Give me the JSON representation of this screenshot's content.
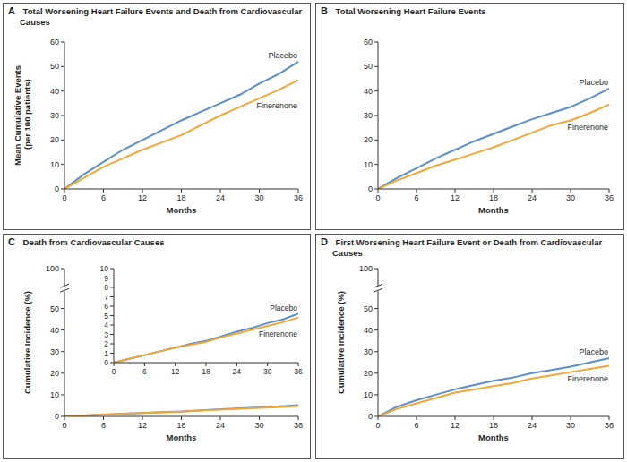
{
  "chart_data": [
    {
      "type": "line",
      "title": "A Total Worsening Heart Failure Events and Death from Cardiovascular Causes",
      "xlabel": "Months",
      "ylabel": "Mean Cumulative Events (per 100 patients)",
      "x": [
        0,
        3,
        6,
        9,
        12,
        15,
        18,
        21,
        24,
        27,
        30,
        33,
        36
      ],
      "xlim": [
        0,
        36
      ],
      "xticks": [
        0,
        6,
        12,
        18,
        24,
        30,
        36
      ],
      "ylim": [
        0,
        60
      ],
      "yticks": [
        0,
        10,
        20,
        30,
        40,
        50,
        60
      ],
      "legend": "right",
      "series": [
        {
          "name": "Placebo",
          "color": "#5b8ec9",
          "values": [
            0,
            6,
            11,
            16,
            20,
            24,
            28,
            31.5,
            35,
            38.5,
            43,
            47,
            52
          ]
        },
        {
          "name": "Finerenone",
          "color": "#f0a73a",
          "values": [
            0,
            4.5,
            9,
            12.5,
            16,
            19,
            22,
            26,
            30,
            33.5,
            37,
            40.5,
            44.5
          ]
        }
      ]
    },
    {
      "type": "line",
      "title": "B Total Worsening Heart Failure Events",
      "xlabel": "Months",
      "x": [
        0,
        3,
        6,
        9,
        12,
        15,
        18,
        21,
        24,
        27,
        30,
        33,
        36
      ],
      "xlim": [
        0,
        36
      ],
      "xticks": [
        0,
        6,
        12,
        18,
        24,
        30,
        36
      ],
      "ylim": [
        0,
        60
      ],
      "yticks": [
        0,
        10,
        20,
        30,
        40,
        50,
        60
      ],
      "legend": "right",
      "series": [
        {
          "name": "Placebo",
          "color": "#5b8ec9",
          "values": [
            0,
            4.5,
            8.5,
            12.5,
            16,
            19.5,
            22.5,
            25.5,
            28.5,
            31,
            33.5,
            37,
            41
          ]
        },
        {
          "name": "Finerenone",
          "color": "#f0a73a",
          "values": [
            0,
            3.5,
            6.5,
            9.5,
            12,
            14.5,
            17,
            20,
            23,
            26,
            28,
            31,
            34.5
          ]
        }
      ]
    },
    {
      "type": "line",
      "title": "C Death from Cardiovascular Causes",
      "xlabel": "Months",
      "ylabel": "Cumulative Incidence (%)",
      "x": [
        0,
        3,
        6,
        9,
        12,
        15,
        18,
        21,
        24,
        27,
        30,
        33,
        36
      ],
      "xlim": [
        0,
        36
      ],
      "xticks": [
        0,
        6,
        12,
        18,
        24,
        30,
        36
      ],
      "ylim": [
        0,
        100
      ],
      "yticks": [
        0,
        10,
        20,
        30,
        40,
        50,
        100
      ],
      "legend": "none",
      "series": [
        {
          "name": "Placebo",
          "color": "#5b8ec9",
          "values": [
            0,
            0.4,
            0.8,
            1.2,
            1.6,
            2.0,
            2.3,
            2.8,
            3.3,
            3.7,
            4.2,
            4.6,
            5.2
          ]
        },
        {
          "name": "Finerenone",
          "color": "#f0a73a",
          "values": [
            0,
            0.4,
            0.8,
            1.2,
            1.6,
            1.9,
            2.2,
            2.7,
            3.1,
            3.5,
            3.9,
            4.3,
            4.8
          ]
        }
      ]
    },
    {
      "type": "line",
      "x": [
        0,
        3,
        6,
        9,
        12,
        15,
        18,
        21,
        24,
        27,
        30,
        33,
        36
      ],
      "xlim": [
        0,
        36
      ],
      "xticks": [
        0,
        6,
        12,
        18,
        24,
        30,
        36
      ],
      "ylim": [
        0,
        10
      ],
      "yticks": [
        0,
        1,
        2,
        3,
        4,
        5,
        6,
        7,
        8,
        9,
        10
      ],
      "legend": "right",
      "series": [
        {
          "name": "Placebo",
          "color": "#5b8ec9",
          "values": [
            0,
            0.4,
            0.8,
            1.2,
            1.6,
            2.0,
            2.3,
            2.8,
            3.3,
            3.7,
            4.2,
            4.6,
            5.2
          ]
        },
        {
          "name": "Finerenone",
          "color": "#f0a73a",
          "values": [
            0,
            0.4,
            0.8,
            1.2,
            1.6,
            1.9,
            2.2,
            2.7,
            3.1,
            3.5,
            3.9,
            4.3,
            4.8
          ]
        }
      ]
    },
    {
      "type": "line",
      "title": "D First Worsening Heart Failure Event or Death from Cardiovascular Causes",
      "xlabel": "Months",
      "ylabel": "Cumulative Incidence (%)",
      "x": [
        0,
        3,
        6,
        9,
        12,
        15,
        18,
        21,
        24,
        27,
        30,
        33,
        36
      ],
      "xlim": [
        0,
        36
      ],
      "xticks": [
        0,
        6,
        12,
        18,
        24,
        30,
        36
      ],
      "ylim": [
        0,
        100
      ],
      "yticks": [
        0,
        10,
        20,
        30,
        40,
        50,
        100
      ],
      "legend": "right",
      "series": [
        {
          "name": "Placebo",
          "color": "#5b8ec9",
          "values": [
            0,
            4.5,
            7.5,
            10,
            12.5,
            14.5,
            16.5,
            18,
            20,
            21.5,
            23,
            25,
            27
          ]
        },
        {
          "name": "Finerenone",
          "color": "#f0a73a",
          "values": [
            0,
            3.5,
            6,
            8.5,
            11,
            12.5,
            14,
            15.5,
            17.5,
            19,
            20.5,
            22,
            23.5
          ]
        }
      ]
    }
  ]
}
